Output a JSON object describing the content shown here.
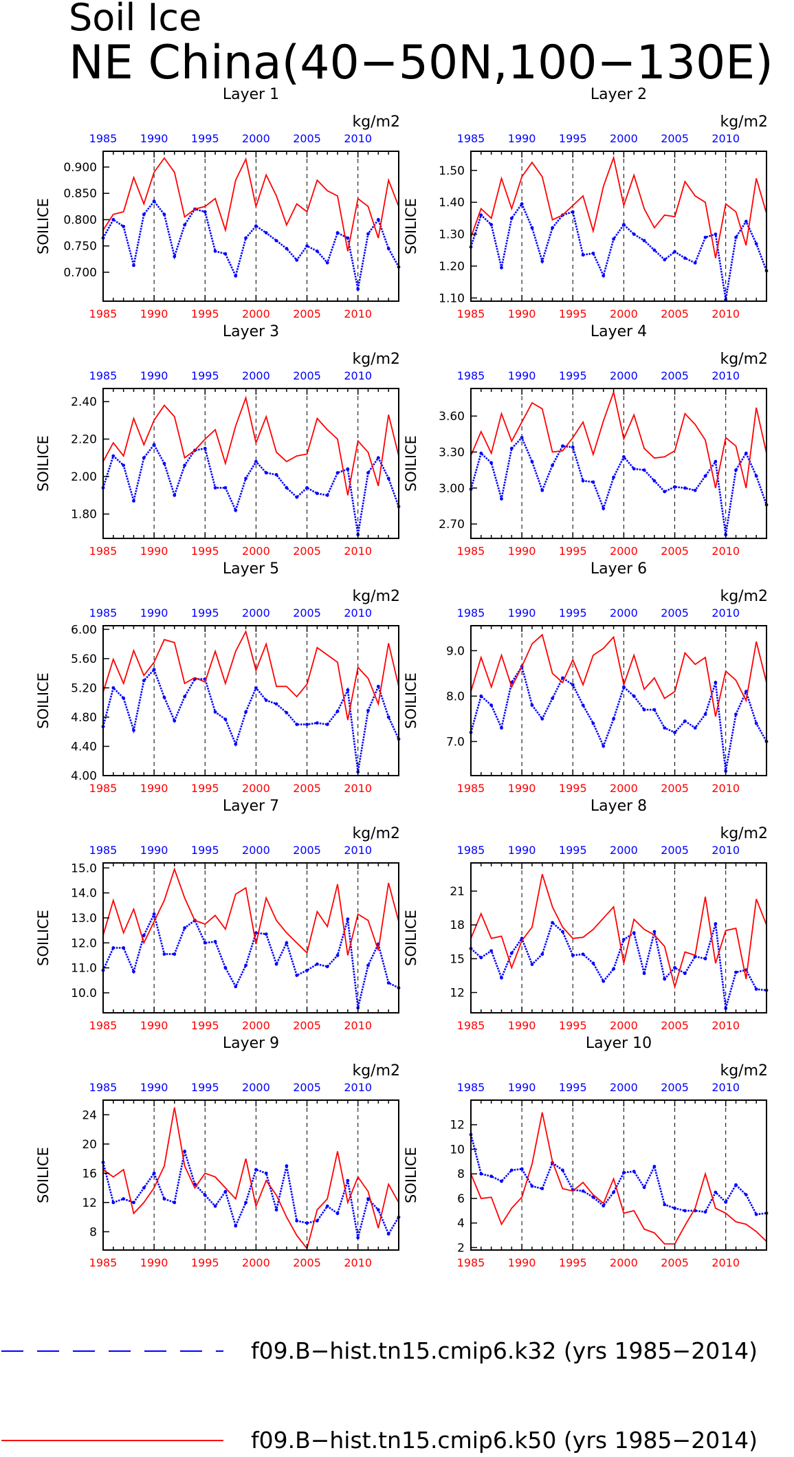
{
  "figure": {
    "title_line1": "Soil Ice",
    "title_line2": "NE China(40−50N,100−130E)",
    "ylabel": "SOILICE",
    "units": "kg/m2",
    "colors": {
      "k32": "#0000ff",
      "k50": "#ff0000",
      "axis": "#000000"
    }
  },
  "legend": [
    {
      "label": "f09.B−hist.tn15.cmip6.k32 (yrs 1985−2014)",
      "color": "#0000ff",
      "style": "dashed"
    },
    {
      "label": "f09.B−hist.tn15.cmip6.k50 (yrs 1985−2014)",
      "color": "#ff0000",
      "style": "solid"
    }
  ],
  "chart_data": [
    {
      "type": "line",
      "title": "Layer 1",
      "xlabel": "",
      "ylabel": "SOILICE",
      "units": "kg/m2",
      "xlim": [
        1985,
        2014
      ],
      "ylim": [
        0.645,
        0.93
      ],
      "xticks": [
        1985,
        1990,
        1995,
        2000,
        2005,
        2010
      ],
      "yticks": [
        0.7,
        0.75,
        0.8,
        0.85,
        0.9
      ],
      "ytick_labels": [
        "0.700",
        "0.750",
        "0.800",
        "0.850",
        "0.900"
      ],
      "series": [
        {
          "key": "k32",
          "values": [
            0.765,
            0.8,
            0.787,
            0.713,
            0.81,
            0.835,
            0.81,
            0.73,
            0.79,
            0.82,
            0.815,
            0.74,
            0.735,
            0.693,
            0.765,
            0.788,
            0.775,
            0.76,
            0.745,
            0.723,
            0.75,
            0.74,
            0.718,
            0.775,
            0.765,
            0.668,
            0.773,
            0.8,
            0.745,
            0.71
          ]
        },
        {
          "key": "k50",
          "values": [
            0.78,
            0.81,
            0.815,
            0.88,
            0.83,
            0.89,
            0.917,
            0.89,
            0.805,
            0.82,
            0.825,
            0.84,
            0.78,
            0.875,
            0.915,
            0.825,
            0.885,
            0.845,
            0.79,
            0.83,
            0.815,
            0.875,
            0.855,
            0.845,
            0.74,
            0.84,
            0.825,
            0.765,
            0.875,
            0.825
          ]
        }
      ]
    },
    {
      "type": "line",
      "title": "Layer 2",
      "xlabel": "",
      "ylabel": "SOILICE",
      "units": "kg/m2",
      "xlim": [
        1985,
        2014
      ],
      "ylim": [
        1.09,
        1.56
      ],
      "xticks": [
        1985,
        1990,
        1995,
        2000,
        2005,
        2010
      ],
      "yticks": [
        1.1,
        1.2,
        1.3,
        1.4,
        1.5
      ],
      "ytick_labels": [
        "1.10",
        "1.20",
        "1.30",
        "1.40",
        "1.50"
      ],
      "series": [
        {
          "key": "k32",
          "values": [
            1.26,
            1.36,
            1.33,
            1.195,
            1.35,
            1.395,
            1.32,
            1.215,
            1.32,
            1.36,
            1.37,
            1.235,
            1.24,
            1.17,
            1.285,
            1.33,
            1.3,
            1.28,
            1.25,
            1.22,
            1.245,
            1.225,
            1.21,
            1.29,
            1.3,
            1.095,
            1.29,
            1.34,
            1.27,
            1.185
          ]
        },
        {
          "key": "k50",
          "values": [
            1.29,
            1.38,
            1.35,
            1.475,
            1.38,
            1.48,
            1.525,
            1.48,
            1.345,
            1.36,
            1.39,
            1.42,
            1.31,
            1.45,
            1.54,
            1.39,
            1.485,
            1.38,
            1.32,
            1.36,
            1.355,
            1.465,
            1.42,
            1.4,
            1.225,
            1.395,
            1.37,
            1.265,
            1.475,
            1.365
          ]
        }
      ]
    },
    {
      "type": "line",
      "title": "Layer 3",
      "xlabel": "",
      "ylabel": "SOILICE",
      "units": "kg/m2",
      "xlim": [
        1985,
        2014
      ],
      "ylim": [
        1.67,
        2.47
      ],
      "xticks": [
        1985,
        1990,
        1995,
        2000,
        2005,
        2010
      ],
      "yticks": [
        1.8,
        2.0,
        2.2,
        2.4
      ],
      "ytick_labels": [
        "1.80",
        "2.00",
        "2.20",
        "2.40"
      ],
      "series": [
        {
          "key": "k32",
          "values": [
            1.94,
            2.11,
            2.06,
            1.87,
            2.1,
            2.17,
            2.07,
            1.9,
            2.06,
            2.14,
            2.15,
            1.94,
            1.94,
            1.82,
            1.99,
            2.08,
            2.02,
            2.01,
            1.94,
            1.89,
            1.94,
            1.91,
            1.9,
            2.02,
            2.04,
            1.69,
            2.02,
            2.1,
            1.99,
            1.84
          ]
        },
        {
          "key": "k50",
          "values": [
            2.08,
            2.18,
            2.11,
            2.31,
            2.17,
            2.3,
            2.38,
            2.32,
            2.1,
            2.14,
            2.2,
            2.25,
            2.07,
            2.27,
            2.42,
            2.18,
            2.32,
            2.13,
            2.08,
            2.11,
            2.12,
            2.31,
            2.25,
            2.2,
            1.9,
            2.19,
            2.13,
            1.95,
            2.33,
            2.11
          ]
        }
      ]
    },
    {
      "type": "line",
      "title": "Layer 4",
      "xlabel": "",
      "ylabel": "SOILICE",
      "units": "kg/m2",
      "xlim": [
        1985,
        2014
      ],
      "ylim": [
        2.58,
        3.83
      ],
      "xticks": [
        1985,
        1990,
        1995,
        2000,
        2005,
        2010
      ],
      "yticks": [
        2.7,
        3.0,
        3.3,
        3.6
      ],
      "ytick_labels": [
        "2.70",
        "3.00",
        "3.30",
        "3.60"
      ],
      "series": [
        {
          "key": "k32",
          "values": [
            2.99,
            3.29,
            3.21,
            2.91,
            3.33,
            3.42,
            3.22,
            2.98,
            3.19,
            3.35,
            3.34,
            3.06,
            3.05,
            2.83,
            3.09,
            3.26,
            3.16,
            3.15,
            3.06,
            2.97,
            3.01,
            3.0,
            2.98,
            3.1,
            3.22,
            2.61,
            3.15,
            3.29,
            3.1,
            2.86
          ]
        },
        {
          "key": "k50",
          "values": [
            3.27,
            3.47,
            3.29,
            3.62,
            3.39,
            3.55,
            3.71,
            3.66,
            3.3,
            3.31,
            3.42,
            3.55,
            3.28,
            3.56,
            3.8,
            3.41,
            3.61,
            3.33,
            3.25,
            3.26,
            3.31,
            3.62,
            3.53,
            3.4,
            3.0,
            3.42,
            3.35,
            3.0,
            3.67,
            3.29
          ]
        }
      ]
    },
    {
      "type": "line",
      "title": "Layer 5",
      "xlabel": "",
      "ylabel": "SOILICE",
      "units": "kg/m2",
      "xlim": [
        1985,
        2014
      ],
      "ylim": [
        4.0,
        6.05
      ],
      "xticks": [
        1985,
        1990,
        1995,
        2000,
        2005,
        2010
      ],
      "yticks": [
        4.0,
        4.4,
        4.8,
        5.2,
        5.6,
        6.0
      ],
      "ytick_labels": [
        "4.00",
        "4.40",
        "4.80",
        "5.20",
        "5.60",
        "6.00"
      ],
      "series": [
        {
          "key": "k32",
          "values": [
            4.67,
            5.2,
            5.06,
            4.62,
            5.3,
            5.45,
            5.07,
            4.75,
            5.08,
            5.32,
            5.32,
            4.87,
            4.77,
            4.43,
            4.87,
            5.2,
            5.03,
            4.98,
            4.86,
            4.7,
            4.7,
            4.72,
            4.7,
            4.88,
            5.17,
            4.05,
            4.89,
            5.22,
            4.8,
            4.5
          ]
        },
        {
          "key": "k50",
          "values": [
            5.14,
            5.59,
            5.26,
            5.71,
            5.37,
            5.55,
            5.86,
            5.82,
            5.26,
            5.34,
            5.28,
            5.7,
            5.26,
            5.7,
            5.97,
            5.44,
            5.8,
            5.22,
            5.22,
            5.08,
            5.25,
            5.75,
            5.65,
            5.55,
            4.76,
            5.48,
            5.33,
            4.98,
            5.81,
            5.22
          ]
        }
      ]
    },
    {
      "type": "line",
      "title": "Layer 6",
      "xlabel": "",
      "ylabel": "SOILICE",
      "units": "kg/m2",
      "xlim": [
        1985,
        2014
      ],
      "ylim": [
        6.25,
        9.55
      ],
      "xticks": [
        1985,
        1990,
        1995,
        2000,
        2005,
        2010
      ],
      "yticks": [
        7.0,
        8.0,
        9.0
      ],
      "ytick_labels": [
        "7.0",
        "8.0",
        "9.0"
      ],
      "series": [
        {
          "key": "k32",
          "values": [
            7.2,
            8.0,
            7.8,
            7.3,
            8.3,
            8.65,
            7.8,
            7.5,
            7.95,
            8.4,
            8.25,
            7.8,
            7.4,
            6.9,
            7.5,
            8.2,
            8.0,
            7.7,
            7.7,
            7.3,
            7.2,
            7.45,
            7.3,
            7.6,
            8.3,
            6.35,
            7.6,
            8.1,
            7.4,
            7.0
          ]
        },
        {
          "key": "k50",
          "values": [
            8.1,
            8.85,
            8.2,
            8.9,
            8.2,
            8.65,
            9.15,
            9.35,
            8.5,
            8.3,
            8.8,
            8.25,
            8.9,
            9.05,
            9.3,
            8.25,
            8.9,
            8.15,
            8.4,
            7.95,
            8.1,
            8.95,
            8.7,
            8.85,
            7.55,
            8.55,
            8.35,
            7.9,
            9.2,
            8.3
          ]
        }
      ]
    },
    {
      "type": "line",
      "title": "Layer 7",
      "xlabel": "",
      "ylabel": "SOILICE",
      "units": "kg/m2",
      "xlim": [
        1985,
        2014
      ],
      "ylim": [
        9.2,
        15.2
      ],
      "xticks": [
        1985,
        1990,
        1995,
        2000,
        2005,
        2010
      ],
      "yticks": [
        10.0,
        11.0,
        12.0,
        13.0,
        14.0,
        15.0
      ],
      "ytick_labels": [
        "10.0",
        "11.0",
        "12.0",
        "13.0",
        "14.0",
        "15.0"
      ],
      "series": [
        {
          "key": "k32",
          "values": [
            10.9,
            11.8,
            11.8,
            10.85,
            12.3,
            13.15,
            11.55,
            11.55,
            12.6,
            12.9,
            12.0,
            12.05,
            11.0,
            10.25,
            11.1,
            12.4,
            12.35,
            11.15,
            12.0,
            10.7,
            10.9,
            11.15,
            11.05,
            11.5,
            12.95,
            9.4,
            11.1,
            11.95,
            10.4,
            10.2
          ]
        },
        {
          "key": "k50",
          "values": [
            12.3,
            13.7,
            12.4,
            13.35,
            12.0,
            12.85,
            13.7,
            14.95,
            13.8,
            12.9,
            12.75,
            13.1,
            12.55,
            13.95,
            14.2,
            11.95,
            13.8,
            12.9,
            12.4,
            12.0,
            11.6,
            13.25,
            12.65,
            14.35,
            11.5,
            13.15,
            12.9,
            11.7,
            14.4,
            12.85
          ]
        }
      ]
    },
    {
      "type": "line",
      "title": "Layer 8",
      "xlabel": "",
      "ylabel": "SOILICE",
      "units": "kg/m2",
      "xlim": [
        1985,
        2014
      ],
      "ylim": [
        10.2,
        23.5
      ],
      "xticks": [
        1985,
        1990,
        1995,
        2000,
        2005,
        2010
      ],
      "yticks": [
        12,
        15,
        18,
        21
      ],
      "ytick_labels": [
        "12",
        "15",
        "18",
        "21"
      ],
      "series": [
        {
          "key": "k32",
          "values": [
            15.9,
            15.1,
            15.7,
            13.3,
            15.5,
            16.8,
            14.5,
            15.4,
            18.2,
            17.4,
            15.3,
            15.4,
            14.6,
            13.0,
            14.1,
            16.7,
            17.3,
            13.7,
            17.4,
            13.2,
            14.2,
            13.7,
            15.2,
            15.0,
            18.1,
            10.6,
            13.8,
            14.0,
            12.3,
            12.2
          ]
        },
        {
          "key": "k50",
          "values": [
            16.8,
            19.0,
            16.8,
            17.0,
            14.2,
            16.6,
            17.8,
            22.5,
            19.6,
            17.8,
            16.8,
            16.9,
            17.6,
            18.6,
            19.6,
            14.6,
            18.5,
            17.6,
            17.1,
            16.1,
            12.5,
            15.6,
            15.3,
            20.5,
            14.6,
            17.5,
            17.7,
            13.2,
            20.3,
            18.0
          ]
        }
      ]
    },
    {
      "type": "line",
      "title": "Layer 9",
      "xlabel": "",
      "ylabel": "SOILICE",
      "units": "kg/m2",
      "xlim": [
        1985,
        2014
      ],
      "ylim": [
        5.5,
        26.0
      ],
      "xticks": [
        1985,
        1990,
        1995,
        2000,
        2005,
        2010
      ],
      "yticks": [
        8,
        12,
        16,
        20,
        24
      ],
      "ytick_labels": [
        "8",
        "12",
        "16",
        "20",
        "24"
      ],
      "series": [
        {
          "key": "k32",
          "values": [
            17.5,
            12.0,
            12.5,
            12.0,
            14.0,
            16.0,
            12.5,
            12.0,
            19.0,
            14.5,
            13.0,
            11.5,
            13.5,
            8.8,
            12.0,
            16.5,
            16.0,
            11.0,
            17.0,
            9.5,
            9.2,
            9.5,
            11.5,
            10.5,
            15.0,
            7.2,
            12.5,
            11.0,
            7.7,
            10.0
          ]
        },
        {
          "key": "k50",
          "values": [
            16.5,
            15.5,
            16.5,
            10.5,
            12.0,
            14.0,
            17.0,
            25.0,
            17.0,
            14.0,
            16.0,
            15.5,
            14.0,
            12.5,
            18.0,
            11.5,
            15.0,
            13.0,
            10.0,
            7.5,
            5.7,
            11.0,
            12.5,
            19.0,
            12.0,
            15.5,
            13.5,
            8.5,
            14.5,
            12.0
          ]
        }
      ]
    },
    {
      "type": "line",
      "title": "Layer 10",
      "xlabel": "",
      "ylabel": "SOILICE",
      "units": "kg/m2",
      "xlim": [
        1985,
        2014
      ],
      "ylim": [
        1.8,
        14.0
      ],
      "xticks": [
        1985,
        1990,
        1995,
        2000,
        2005,
        2010
      ],
      "yticks": [
        2,
        4,
        6,
        8,
        10,
        12
      ],
      "ytick_labels": [
        "2",
        "4",
        "6",
        "8",
        "10",
        "12"
      ],
      "series": [
        {
          "key": "k32",
          "values": [
            11.2,
            8.0,
            7.8,
            7.4,
            8.3,
            8.4,
            7.0,
            6.8,
            8.9,
            8.3,
            6.7,
            6.6,
            6.1,
            5.4,
            6.5,
            8.1,
            8.2,
            6.9,
            8.6,
            5.5,
            5.2,
            5.0,
            5.0,
            4.9,
            6.5,
            5.7,
            7.1,
            6.3,
            4.7,
            4.8
          ]
        },
        {
          "key": "k50",
          "values": [
            8.0,
            6.0,
            6.1,
            3.9,
            5.2,
            6.1,
            8.8,
            13.0,
            9.0,
            6.8,
            6.6,
            7.3,
            6.3,
            5.6,
            7.6,
            4.8,
            5.0,
            3.5,
            3.2,
            2.3,
            2.3,
            3.8,
            5.2,
            8.0,
            5.2,
            4.8,
            4.1,
            3.9,
            3.3,
            2.5
          ]
        }
      ]
    }
  ]
}
